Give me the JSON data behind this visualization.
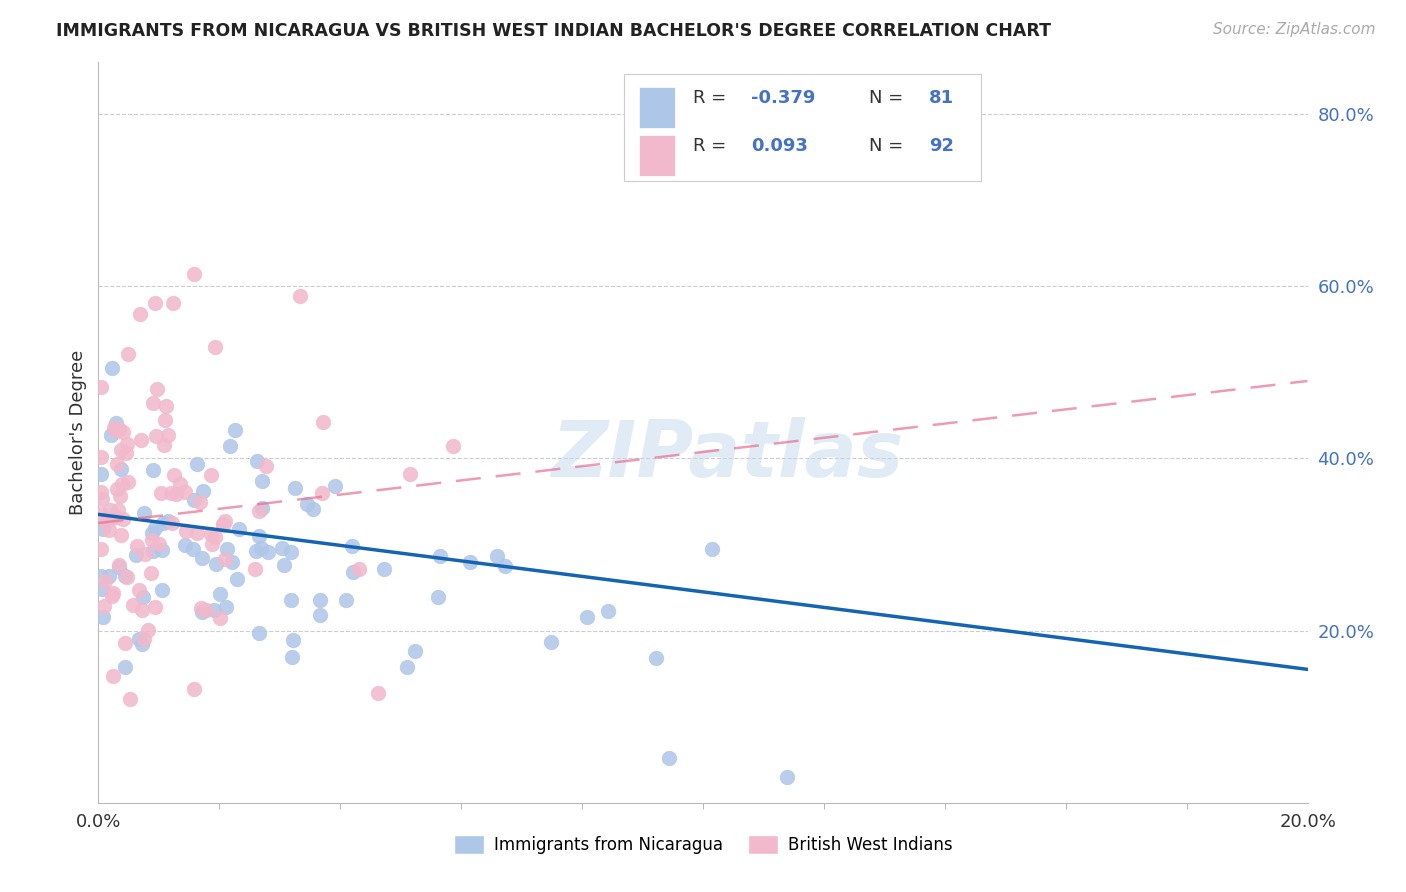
{
  "title": "IMMIGRANTS FROM NICARAGUA VS BRITISH WEST INDIAN BACHELOR'S DEGREE CORRELATION CHART",
  "source": "Source: ZipAtlas.com",
  "ylabel": "Bachelor's Degree",
  "watermark": "ZIPatlas",
  "blue_R": -0.379,
  "blue_N": 81,
  "pink_R": 0.093,
  "pink_N": 92,
  "blue_color": "#aec6e8",
  "pink_color": "#f2b8cb",
  "blue_line_color": "#1464b4",
  "pink_line_color": "#e87090",
  "xmin": 0.0,
  "xmax": 0.2,
  "ymin": 0.0,
  "ymax": 0.86,
  "yticks": [
    0.2,
    0.4,
    0.6,
    0.8
  ],
  "ytick_labels": [
    "20.0%",
    "40.0%",
    "60.0%",
    "80.0%"
  ],
  "legend_label_blue": "Immigrants from Nicaragua",
  "legend_label_pink": "British West Indians",
  "xtick_left": "0.0%",
  "xtick_right": "20.0%"
}
